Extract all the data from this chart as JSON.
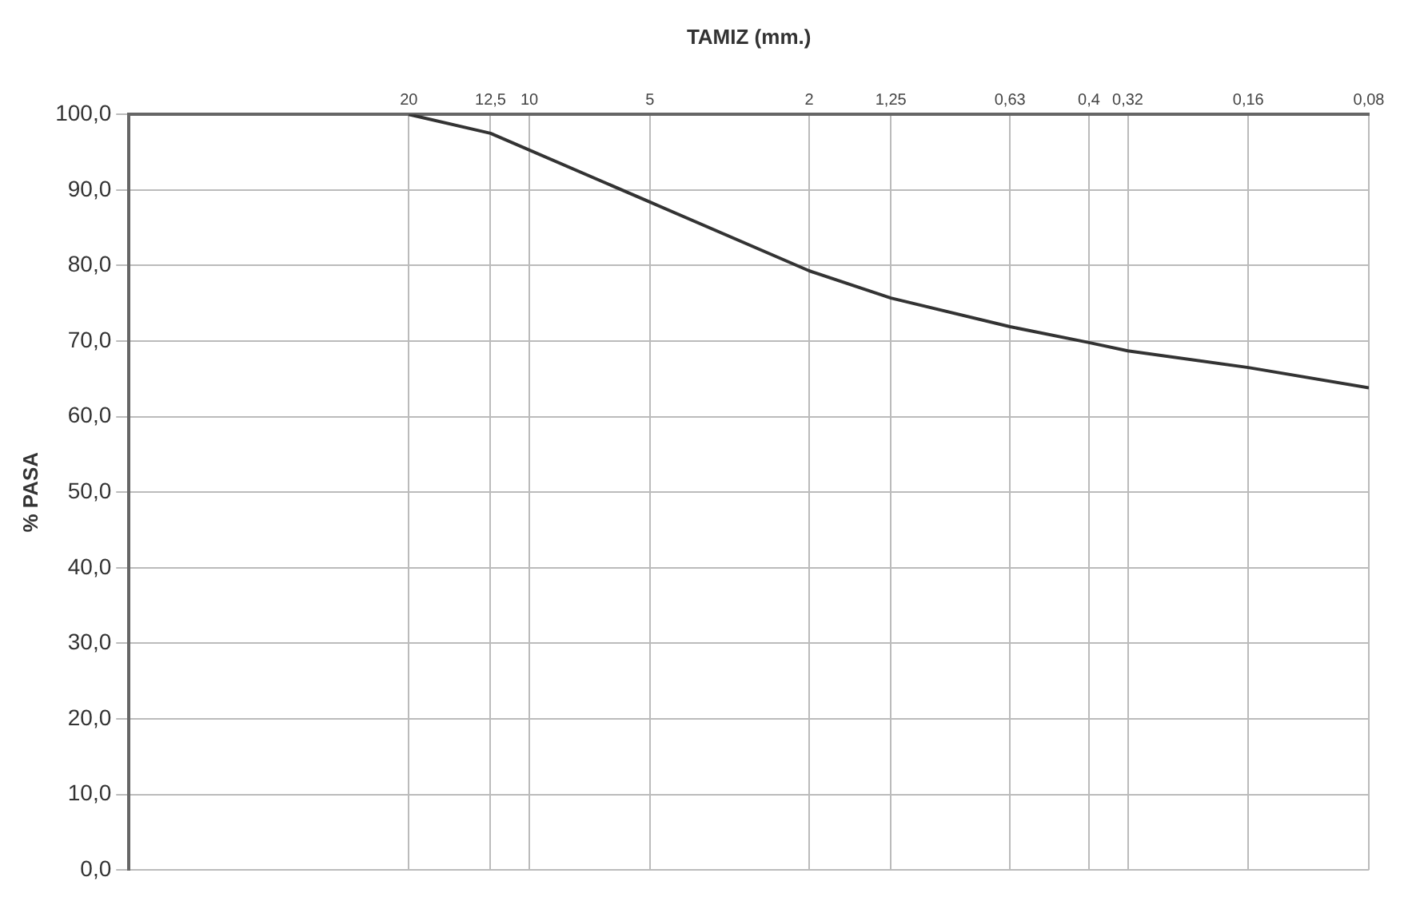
{
  "chart_data": {
    "type": "line",
    "xlabel": "TAMIZ (mm.)",
    "ylabel": "% PASA",
    "log": "x",
    "x": [
      20,
      12.5,
      5,
      2,
      1.25,
      0.63,
      0.4,
      0.32,
      0.16,
      0.08
    ],
    "series": [
      {
        "color": "#333333",
        "values": [
          100,
          97.5,
          88.4,
          79.3,
          75.7,
          71.9,
          69.8,
          68.7,
          66.5,
          63.8
        ]
      }
    ],
    "xlim": [
      100,
      0.08
    ],
    "xticks": [
      20,
      {
        "value": 12.5,
        "label": "12,5"
      },
      10,
      5,
      2,
      {
        "value": 1.25,
        "label": "1,25"
      },
      {
        "value": 0.63,
        "label": "0,63"
      },
      {
        "value": 0.4,
        "label": "0,4"
      },
      {
        "value": 0.32,
        "label": "0,32"
      },
      {
        "value": 0.16,
        "label": "0,16"
      },
      {
        "value": 0.08,
        "label": "0,08"
      }
    ],
    "ylim": [
      0,
      100
    ],
    "yticks": [
      {
        "value": 0,
        "label": "0,0"
      },
      {
        "value": 10,
        "label": "10,0"
      },
      {
        "value": 20,
        "label": "20,0"
      },
      {
        "value": 30,
        "label": "30,0"
      },
      {
        "value": 40,
        "label": "40,0"
      },
      {
        "value": 50,
        "label": "50,0"
      },
      {
        "value": 60,
        "label": "60,0"
      },
      {
        "value": 70,
        "label": "70,0"
      },
      {
        "value": 80,
        "label": "80,0"
      },
      {
        "value": 90,
        "label": "90,0"
      },
      {
        "value": 100,
        "label": "100,0"
      }
    ],
    "grid": true,
    "legend": false,
    "marker": "none",
    "line_style": "solid"
  }
}
